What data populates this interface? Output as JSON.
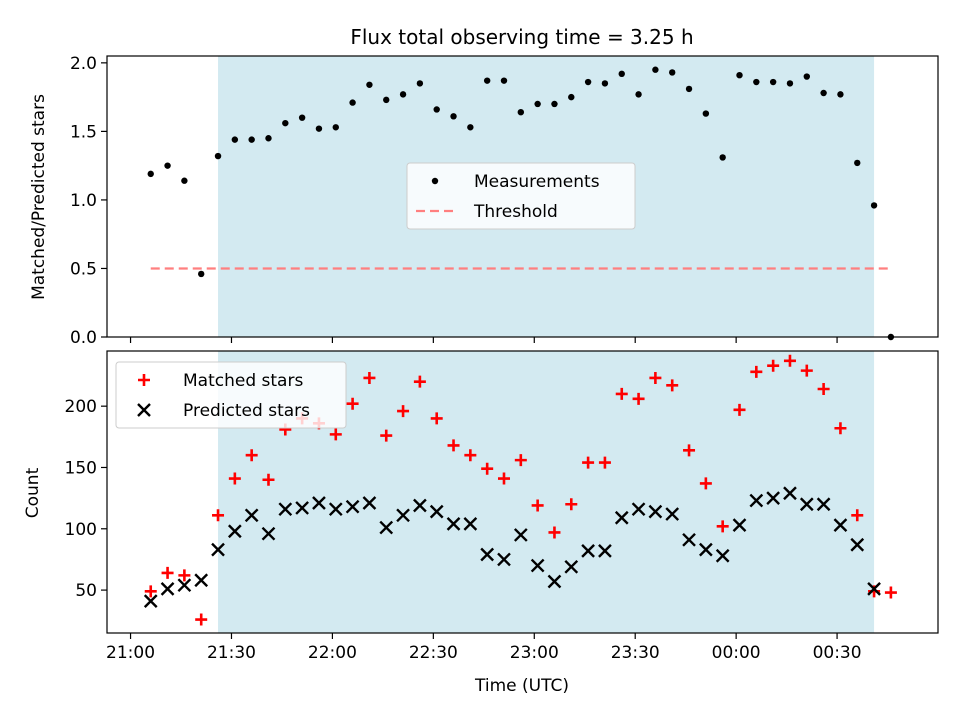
{
  "chart_data": {
    "type": "scatter",
    "title": "Flux total observing time = 3.25 h",
    "xlabel": "Time (UTC)",
    "xlim": [
      "20:53",
      "01:00"
    ],
    "xticks": [
      "21:00",
      "21:30",
      "22:00",
      "22:30",
      "23:00",
      "23:30",
      "00:00",
      "00:30"
    ],
    "observing_window": {
      "start": "21:26",
      "end": "00:41",
      "color": "#d3eaf1"
    },
    "panels": [
      {
        "ylabel": "Matched/Predicted stars",
        "ylim": [
          0,
          2.05
        ],
        "yticks": [
          "0.0",
          "0.5",
          "1.0",
          "1.5",
          "2.0"
        ],
        "legend": {
          "location": "center",
          "entries": [
            "Measurements",
            "Threshold"
          ]
        },
        "series": [
          {
            "name": "Measurements",
            "kind": "scatter",
            "marker": "dot",
            "color": "#000000",
            "x": [
              "21:06",
              "21:11",
              "21:16",
              "21:21",
              "21:26",
              "21:31",
              "21:36",
              "21:41",
              "21:46",
              "21:51",
              "21:56",
              "22:01",
              "22:06",
              "22:11",
              "22:16",
              "22:21",
              "22:26",
              "22:31",
              "22:36",
              "22:41",
              "22:46",
              "22:51",
              "22:56",
              "23:01",
              "23:06",
              "23:11",
              "23:16",
              "23:21",
              "23:26",
              "23:31",
              "23:36",
              "23:41",
              "23:46",
              "23:51",
              "23:56",
              "00:01",
              "00:06",
              "00:11",
              "00:16",
              "00:21",
              "00:26",
              "00:31",
              "00:36",
              "00:41",
              "00:46"
            ],
            "y": [
              1.19,
              1.25,
              1.14,
              0.46,
              1.32,
              1.44,
              1.44,
              1.45,
              1.56,
              1.6,
              1.52,
              1.53,
              1.71,
              1.84,
              1.73,
              1.77,
              1.85,
              1.66,
              1.61,
              1.53,
              1.87,
              1.87,
              1.64,
              1.7,
              1.7,
              1.75,
              1.86,
              1.85,
              1.92,
              1.77,
              1.95,
              1.93,
              1.81,
              1.63,
              1.31,
              1.91,
              1.86,
              1.86,
              1.85,
              1.9,
              1.78,
              1.77,
              1.27,
              0.96,
              0.0
            ]
          },
          {
            "name": "Threshold",
            "kind": "line",
            "style": "dashed",
            "color": "#ff7f7f",
            "x": [
              "21:06",
              "00:46"
            ],
            "y": [
              0.5,
              0.5
            ]
          }
        ]
      },
      {
        "ylabel": "Count",
        "ylim": [
          15,
          245
        ],
        "yticks": [
          "50",
          "100",
          "150",
          "200"
        ],
        "legend": {
          "location": "upper left",
          "entries": [
            "Matched stars",
            "Predicted stars"
          ]
        },
        "series": [
          {
            "name": "Matched stars",
            "kind": "scatter",
            "marker": "plus",
            "color": "#ff0000",
            "x": [
              "21:06",
              "21:11",
              "21:16",
              "21:21",
              "21:26",
              "21:31",
              "21:36",
              "21:41",
              "21:46",
              "21:51",
              "21:56",
              "22:01",
              "22:06",
              "22:11",
              "22:16",
              "22:21",
              "22:26",
              "22:31",
              "22:36",
              "22:41",
              "22:46",
              "22:51",
              "22:56",
              "23:01",
              "23:06",
              "23:11",
              "23:16",
              "23:21",
              "23:26",
              "23:31",
              "23:36",
              "23:41",
              "23:46",
              "23:51",
              "23:56",
              "00:01",
              "00:06",
              "00:11",
              "00:16",
              "00:21",
              "00:26",
              "00:31",
              "00:36",
              "00:41",
              "00:46"
            ],
            "y": [
              49,
              64,
              62,
              26,
              111,
              141,
              160,
              140,
              181,
              190,
              186,
              177,
              202,
              223,
              176,
              196,
              220,
              190,
              168,
              160,
              149,
              141,
              156,
              119,
              97,
              120,
              154,
              154,
              210,
              206,
              223,
              217,
              164,
              137,
              102,
              197,
              228,
              233,
              237,
              229,
              214,
              182,
              111,
              49,
              48
            ]
          },
          {
            "name": "Predicted stars",
            "kind": "scatter",
            "marker": "x",
            "color": "#000000",
            "x": [
              "21:06",
              "21:11",
              "21:16",
              "21:21",
              "21:26",
              "21:31",
              "21:36",
              "21:41",
              "21:46",
              "21:51",
              "21:56",
              "22:01",
              "22:06",
              "22:11",
              "22:16",
              "22:21",
              "22:26",
              "22:31",
              "22:36",
              "22:41",
              "22:46",
              "22:51",
              "22:56",
              "23:01",
              "23:06",
              "23:11",
              "23:16",
              "23:21",
              "23:26",
              "23:31",
              "23:36",
              "23:41",
              "23:46",
              "23:51",
              "23:56",
              "00:01",
              "00:06",
              "00:11",
              "00:16",
              "00:21",
              "00:26",
              "00:31",
              "00:36",
              "00:41"
            ],
            "y": [
              41,
              51,
              54,
              58,
              83,
              98,
              111,
              96,
              116,
              117,
              121,
              116,
              118,
              121,
              101,
              111,
              119,
              114,
              104,
              104,
              79,
              75,
              95,
              70,
              57,
              69,
              82,
              82,
              109,
              116,
              114,
              112,
              91,
              83,
              78,
              103,
              123,
              125,
              129,
              120,
              120,
              103,
              87,
              51
            ]
          }
        ]
      }
    ]
  }
}
